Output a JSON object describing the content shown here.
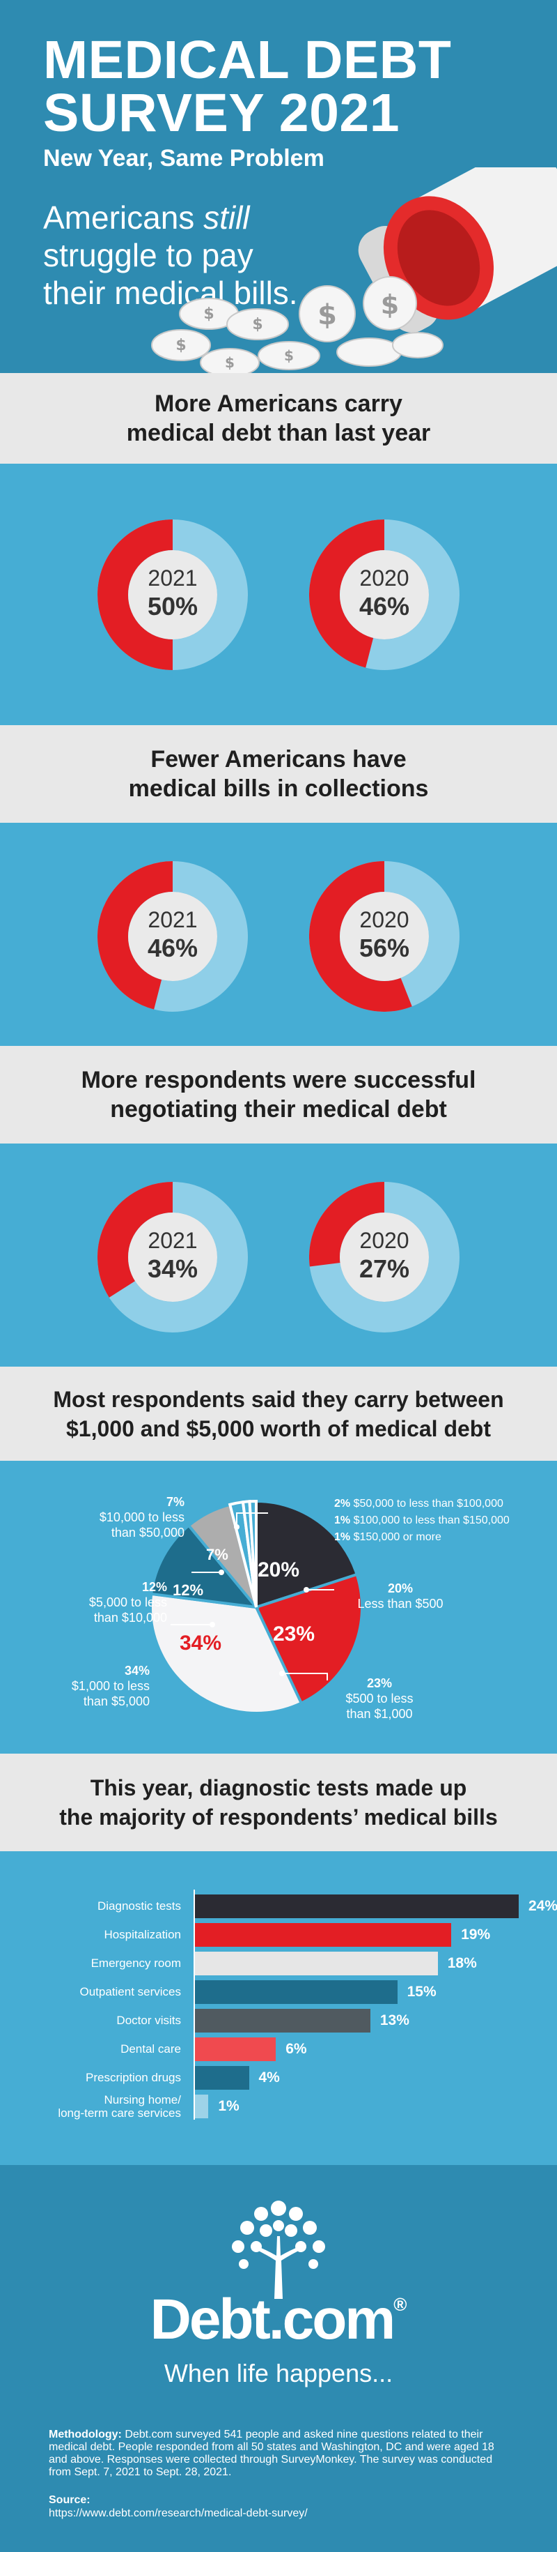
{
  "header": {
    "title_line1": "MEDICAL DEBT",
    "title_line2": "SURVEY 2021",
    "subtitle": "New Year, Same Problem",
    "tagline_pre": "Americans ",
    "tagline_em": "still",
    "tagline_post": " struggle to pay their medical bills."
  },
  "sections": [
    {
      "line1": "More Americans carry",
      "line2": "medical debt than last year"
    },
    {
      "line1": "Fewer Americans have",
      "line2": "medical bills in collections"
    },
    {
      "line1": "More respondents were successful",
      "line2": "negotiating their medical debt"
    },
    {
      "line1": "Most respondents said they carry between",
      "line2": "$1,000 and $5,000 worth of medical debt"
    },
    {
      "line1": "This year, diagnostic tests made up",
      "line2": "the majority of respondents’ medical bills"
    }
  ],
  "colors": {
    "red": "#e31e24",
    "ring": "#8fcfe8",
    "dark": "#2b2b33",
    "teal": "#1e6d8c",
    "gray": "#adadad",
    "light": "#f4f4f6"
  },
  "chart_data": [
    {
      "type": "pie",
      "title": "More Americans carry medical debt than last year",
      "series": [
        {
          "name": "2021",
          "value": 50,
          "label": "50%"
        },
        {
          "name": "2020",
          "value": 46,
          "label": "46%"
        }
      ]
    },
    {
      "type": "pie",
      "title": "Fewer Americans have medical bills in collections",
      "series": [
        {
          "name": "2021",
          "value": 46,
          "label": "46%"
        },
        {
          "name": "2020",
          "value": 56,
          "label": "56%"
        }
      ]
    },
    {
      "type": "pie",
      "title": "More respondents were successful negotiating their medical debt",
      "series": [
        {
          "name": "2021",
          "value": 34,
          "label": "34%"
        },
        {
          "name": "2020",
          "value": 27,
          "label": "27%"
        }
      ]
    },
    {
      "type": "pie",
      "title": "Most respondents said they carry between $1,000 and $5,000 worth of medical debt",
      "slices": [
        {
          "value": 20,
          "pct": "20%",
          "range": "Less than $500",
          "color": "#2b2b33"
        },
        {
          "value": 23,
          "pct": "23%",
          "range_l1": "$500 to less",
          "range_l2": "than $1,000",
          "color": "#e31e24"
        },
        {
          "value": 34,
          "pct": "34%",
          "range_l1": "$1,000 to less",
          "range_l2": "than $5,000",
          "color": "#f4f4f6"
        },
        {
          "value": 12,
          "pct": "12%",
          "range_l1": "$5,000 to less",
          "range_l2": "than $10,000",
          "color": "#1e6d8c"
        },
        {
          "value": 7,
          "pct": "7%",
          "range_l1": "$10,000 to less",
          "range_l2": "than $50,000",
          "color": "#adadad"
        },
        {
          "value": 2,
          "pct": "2%",
          "range": "$50,000 to less than $100,000",
          "color": "#46add4"
        },
        {
          "value": 1,
          "pct": "1%",
          "range": "$100,000 to less than $150,000",
          "color": "#46add4"
        },
        {
          "value": 1,
          "pct": "1%",
          "range": "$150,000 or more",
          "color": "#46add4"
        }
      ]
    },
    {
      "type": "bar",
      "title": "This year, diagnostic tests made up the majority of respondents’ medical bills",
      "categories": [
        "Diagnostic tests",
        "Hospitalization",
        "Emergency room",
        "Outpatient services",
        "Doctor visits",
        "Dental care",
        "Prescription drugs",
        "Nursing home/ long-term care services"
      ],
      "values": [
        24,
        19,
        18,
        15,
        13,
        6,
        4,
        1
      ],
      "labels": [
        "24%",
        "19%",
        "18%",
        "15%",
        "13%",
        "6%",
        "4%",
        "1%"
      ],
      "colors": [
        "#2b2b33",
        "#e31e24",
        "#e6e6e6",
        "#1e6d8c",
        "#505a60",
        "#f04a4f",
        "#1e6d8c",
        "#9dd3e8"
      ],
      "xlim": [
        0,
        24
      ]
    }
  ],
  "bar_label_lines": [
    [
      "Diagnostic tests"
    ],
    [
      "Hospitalization"
    ],
    [
      "Emergency room"
    ],
    [
      "Outpatient services"
    ],
    [
      "Doctor visits"
    ],
    [
      "Dental care"
    ],
    [
      "Prescription drugs"
    ],
    [
      "Nursing home/",
      "long-term care services"
    ]
  ],
  "footer": {
    "logo": "Debt.com",
    "logo_reg": "®",
    "slogan": "When life happens...",
    "methodology_label": "Methodology:",
    "methodology": "Debt.com surveyed 541 people and asked nine questions related to their medical debt. People responded from all 50 states and Washington, DC and were aged 18 and above. Responses were collected through SurveyMonkey. The survey was conducted from Sept. 7, 2021 to Sept. 28, 2021.",
    "source_label": "Source:",
    "source_url": "https://www.debt.com/research/medical-debt-survey/"
  }
}
